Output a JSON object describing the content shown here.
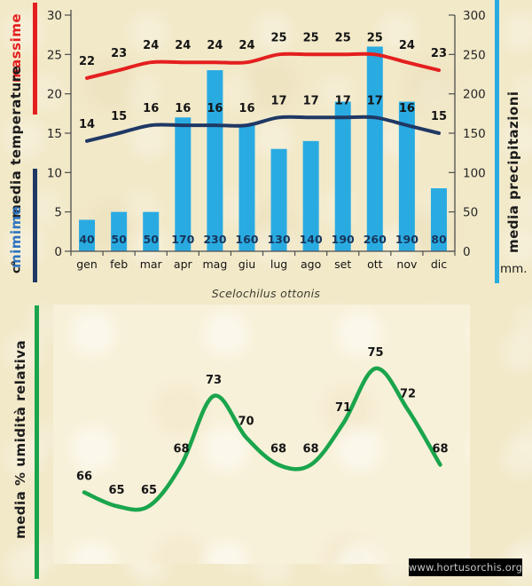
{
  "colors": {
    "background": "#f2e9c9",
    "panel": "#f8f1da",
    "massime_line": "#e41f1f",
    "minime_line": "#1f3864",
    "precip_bar": "#29abe2",
    "humidity_line": "#1aa54c",
    "mimime_text": "#2e74c0",
    "bar_label_text": "#17365d"
  },
  "sidebar": {
    "massime_label": "massime",
    "temperature_label": "media  temperature",
    "mimime_label": "mimime",
    "celsius_label": "c°",
    "precip_label": "media  precipitazioni",
    "mm_label": "mm.",
    "humidity_label": "media % umidità relativa"
  },
  "footer": {
    "watermark": "www.hortusorchis.org"
  },
  "chart_data": [
    {
      "type": "bar",
      "subtype": "composite-bar-line-climograph",
      "title": "Scelochilus ottonis",
      "categories": [
        "gen",
        "feb",
        "mar",
        "apr",
        "mag",
        "giu",
        "lug",
        "ago",
        "set",
        "ott",
        "nov",
        "dic"
      ],
      "series": [
        {
          "name": "massime",
          "type": "line",
          "color": "#e41f1f",
          "values": [
            22,
            23,
            24,
            24,
            24,
            24,
            25,
            25,
            25,
            25,
            24,
            23
          ]
        },
        {
          "name": "mimime",
          "type": "line",
          "color": "#1f3864",
          "values": [
            14,
            15,
            16,
            16,
            16,
            16,
            17,
            17,
            17,
            17,
            16,
            15
          ]
        },
        {
          "name": "media precipitazioni",
          "type": "bar",
          "color": "#29abe2",
          "values": [
            40,
            50,
            50,
            170,
            230,
            160,
            130,
            140,
            190,
            260,
            190,
            80
          ]
        }
      ],
      "left_axis": {
        "label": "media temperature",
        "unit": "c°",
        "min": 0,
        "max": 30,
        "ticks": [
          30,
          25,
          20,
          15,
          10,
          5,
          0
        ]
      },
      "right_axis": {
        "label": "media precipitazioni",
        "unit": "mm.",
        "min": 0,
        "max": 300,
        "ticks": [
          300,
          250,
          200,
          150,
          100,
          50,
          0
        ]
      },
      "grid": false,
      "legend": "none"
    },
    {
      "type": "line",
      "ylabel": "media % umidità relativa",
      "color": "#1aa54c",
      "categories": [
        "gen",
        "feb",
        "mar",
        "apr",
        "mag",
        "giu",
        "lug",
        "ago",
        "set",
        "ott",
        "nov",
        "dic"
      ],
      "values": [
        66,
        65,
        65,
        68,
        73,
        70,
        68,
        68,
        71,
        75,
        72,
        68
      ],
      "axes_visible": false,
      "grid": false
    }
  ]
}
